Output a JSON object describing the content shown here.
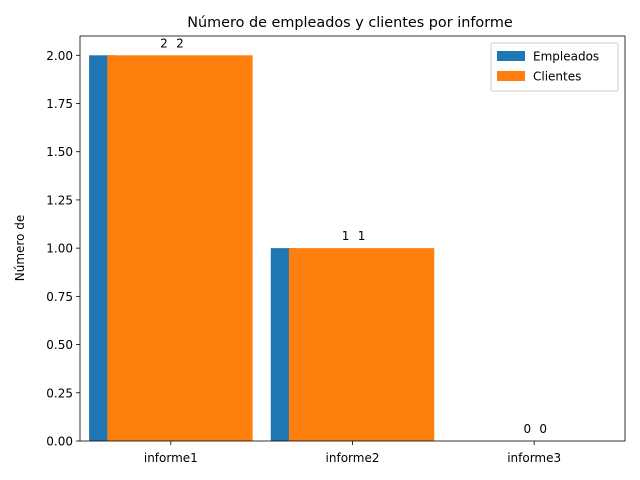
{
  "chart_data": {
    "type": "bar",
    "title": "Número de empleados y clientes por informe",
    "xlabel": "",
    "ylabel": "Número de",
    "categories": [
      "informe1",
      "informe2",
      "informe3"
    ],
    "series": [
      {
        "name": "Empleados",
        "values": [
          2,
          1,
          0
        ],
        "labels": [
          "2",
          "1",
          "0"
        ],
        "color": "#1f77b4"
      },
      {
        "name": "Clientes",
        "values": [
          2,
          1,
          0
        ],
        "labels": [
          "2",
          "1",
          "0"
        ],
        "color": "#ff7f0e"
      }
    ],
    "ylim": [
      0,
      2.1
    ],
    "yticks": [
      0,
      0.25,
      0.5,
      0.75,
      1.0,
      1.25,
      1.5,
      1.75,
      2.0
    ],
    "ytick_labels": [
      "0.00",
      "0.25",
      "0.50",
      "0.75",
      "1.00",
      "1.25",
      "1.50",
      "1.75",
      "2.00"
    ],
    "grid": false,
    "legend_position": "top-right"
  }
}
